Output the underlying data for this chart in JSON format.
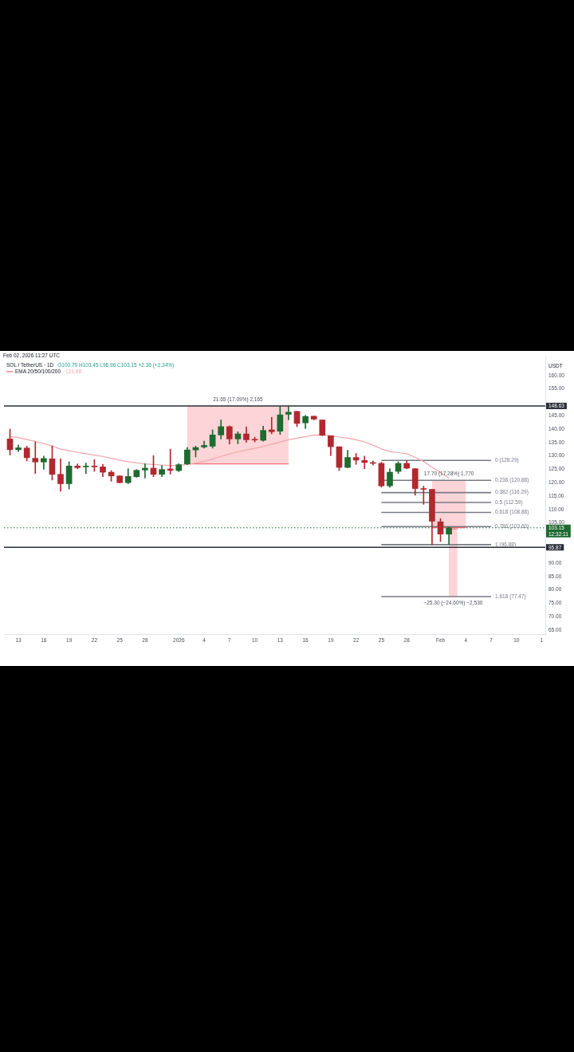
{
  "chart_data": {
    "type": "candlestick",
    "title": "SOL / TetherUS · 1D",
    "subtitle": "O100.79 H103.45 L96.96 C103.15 +2.36 (+2.34%)",
    "ylabel": "USDT",
    "x": [
      "2025-12-12",
      "2025-12-13",
      "2025-12-14",
      "2025-12-15",
      "2025-12-16",
      "2025-12-17",
      "2025-12-18",
      "2025-12-19",
      "2025-12-20",
      "2025-12-21",
      "2025-12-22",
      "2025-12-23",
      "2025-12-24",
      "2025-12-25",
      "2025-12-26",
      "2025-12-27",
      "2025-12-28",
      "2025-12-29",
      "2025-12-30",
      "2025-12-31",
      "2026-01-01",
      "2026-01-02",
      "2026-01-03",
      "2026-01-04",
      "2026-01-05",
      "2026-01-06",
      "2026-01-07",
      "2026-01-08",
      "2026-01-09",
      "2026-01-10",
      "2026-01-11",
      "2026-01-12",
      "2026-01-13",
      "2026-01-14",
      "2026-01-15",
      "2026-01-16",
      "2026-01-17",
      "2026-01-18",
      "2026-01-19",
      "2026-01-20",
      "2026-01-21",
      "2026-01-22",
      "2026-01-23",
      "2026-01-24",
      "2026-01-25",
      "2026-01-26",
      "2026-01-27",
      "2026-01-28",
      "2026-01-29",
      "2026-01-30",
      "2026-01-31",
      "2026-02-01",
      "2026-02-02"
    ],
    "ohlc": [
      [
        136.3,
        140.0,
        130.3,
        132.3
      ],
      [
        132.3,
        134.1,
        131.6,
        133.0
      ],
      [
        132.9,
        133.6,
        128.1,
        129.3
      ],
      [
        129.1,
        135.2,
        123.4,
        127.7
      ],
      [
        127.7,
        129.9,
        125.0,
        129.0
      ],
      [
        128.9,
        133.7,
        121.0,
        123.1
      ],
      [
        123.1,
        128.9,
        116.8,
        119.6
      ],
      [
        119.6,
        127.8,
        117.6,
        126.2
      ],
      [
        126.2,
        127.0,
        125.2,
        125.6
      ],
      [
        125.9,
        127.3,
        123.4,
        126.1
      ],
      [
        126.2,
        128.6,
        124.2,
        125.9
      ],
      [
        125.9,
        126.9,
        122.2,
        123.9
      ],
      [
        123.9,
        124.5,
        120.5,
        122.5
      ],
      [
        122.5,
        122.6,
        119.9,
        120.0
      ],
      [
        120.0,
        125.2,
        119.6,
        122.3
      ],
      [
        122.2,
        124.9,
        122.0,
        124.6
      ],
      [
        124.7,
        127.1,
        121.7,
        125.4
      ],
      [
        125.4,
        130.1,
        122.2,
        123.1
      ],
      [
        123.1,
        126.4,
        122.2,
        124.9
      ],
      [
        125.1,
        132.5,
        123.2,
        124.6
      ],
      [
        124.5,
        127.1,
        124.1,
        126.7
      ],
      [
        127.0,
        133.1,
        126.7,
        132.2
      ],
      [
        132.2,
        133.6,
        129.6,
        133.1
      ],
      [
        133.3,
        135.5,
        132.9,
        133.9
      ],
      [
        133.6,
        139.7,
        132.9,
        137.8
      ],
      [
        137.8,
        143.4,
        136.3,
        140.9
      ],
      [
        140.9,
        141.2,
        134.4,
        136.3
      ],
      [
        136.3,
        139.0,
        134.5,
        138.2
      ],
      [
        138.2,
        140.8,
        135.0,
        136.0
      ],
      [
        136.1,
        137.0,
        135.2,
        135.9
      ],
      [
        135.8,
        141.1,
        135.5,
        139.5
      ],
      [
        139.7,
        144.4,
        138.2,
        139.0
      ],
      [
        139.2,
        148.4,
        138.0,
        145.3
      ],
      [
        145.5,
        148.63,
        143.4,
        146.3
      ],
      [
        146.6,
        146.6,
        140.9,
        142.1
      ],
      [
        142.3,
        145.1,
        140.2,
        144.7
      ],
      [
        144.8,
        144.8,
        143.4,
        143.7
      ],
      [
        143.4,
        143.4,
        137.5,
        137.7
      ],
      [
        137.5,
        137.5,
        130.1,
        133.4
      ],
      [
        133.4,
        133.4,
        124.5,
        125.7
      ],
      [
        125.7,
        132.1,
        125.5,
        129.4
      ],
      [
        129.4,
        130.9,
        126.8,
        128.4
      ],
      [
        128.3,
        129.9,
        125.2,
        127.5
      ],
      [
        127.4,
        128.1,
        126.6,
        127.2
      ],
      [
        127.2,
        127.6,
        118.3,
        118.8
      ],
      [
        118.8,
        125.2,
        118.3,
        123.9
      ],
      [
        124.2,
        127.8,
        123.4,
        127.2
      ],
      [
        127.2,
        128.29,
        125.2,
        125.4
      ],
      [
        125.2,
        125.2,
        115.3,
        117.8
      ],
      [
        117.8,
        118.7,
        111.9,
        117.5
      ],
      [
        117.5,
        117.5,
        96.88,
        105.6
      ],
      [
        105.4,
        106.6,
        98.0,
        100.79
      ],
      [
        100.79,
        103.45,
        96.96,
        103.15
      ]
    ],
    "colors": [
      "#b2282f",
      "#1e6a30",
      "#b2282f",
      "#b2282f",
      "#1e6a30",
      "#b2282f",
      "#b2282f",
      "#1e6a30",
      "#b2282f",
      "#1e6a30",
      "#b2282f",
      "#b2282f",
      "#b2282f",
      "#b2282f",
      "#1e6a30",
      "#1e6a30",
      "#1e6a30",
      "#b2282f",
      "#1e6a30",
      "#b2282f",
      "#1e6a30",
      "#1e6a30",
      "#1e6a30",
      "#1e6a30",
      "#1e6a30",
      "#1e6a30",
      "#b2282f",
      "#1e6a30",
      "#b2282f",
      "#b2282f",
      "#1e6a30",
      "#b2282f",
      "#1e6a30",
      "#1e6a30",
      "#b2282f",
      "#1e6a30",
      "#b2282f",
      "#b2282f",
      "#b2282f",
      "#b2282f",
      "#1e6a30",
      "#b2282f",
      "#b2282f",
      "#b2282f",
      "#b2282f",
      "#1e6a30",
      "#1e6a30",
      "#b2282f",
      "#b2282f",
      "#b2282f",
      "#b2282f",
      "#b2282f",
      "#1e6a30"
    ],
    "series": [
      {
        "type": "line",
        "name": "EMA 20/50/100/200",
        "color": "#f4a6ab",
        "values": [
          137.2,
          136.8,
          136.1,
          135.4,
          134.6,
          133.7,
          132.5,
          131.9,
          131.3,
          130.8,
          130.3,
          129.8,
          129.1,
          128.4,
          127.8,
          127.4,
          127.0,
          126.8,
          126.6,
          126.4,
          126.5,
          126.8,
          127.3,
          128.0,
          128.8,
          129.8,
          130.7,
          131.5,
          132.2,
          132.8,
          133.5,
          134.3,
          135.2,
          136.0,
          136.6,
          137.2,
          137.7,
          137.8,
          137.5,
          137.0,
          136.6,
          136.0,
          135.2,
          134.0,
          132.6,
          131.6,
          131.2,
          130.8,
          129.4,
          127.9,
          125.8,
          123.8,
          121.68
        ]
      },
      {
        "type": "line",
        "name": "0 (128.29)",
        "color": "#787b86",
        "x": [
          "2026-01-25",
          "2026-02-07"
        ],
        "values": [
          128.29,
          128.29
        ]
      },
      {
        "type": "line",
        "name": "0.236 (120.88)",
        "color": "#787b86",
        "x": [
          "2026-01-25",
          "2026-02-07"
        ],
        "values": [
          120.88,
          120.88
        ]
      },
      {
        "type": "line",
        "name": "0.382 (116.29)",
        "color": "#787b86",
        "x": [
          "2026-01-25",
          "2026-02-07"
        ],
        "values": [
          116.29,
          116.29
        ]
      },
      {
        "type": "line",
        "name": "0.5 (112.59)",
        "color": "#787b86",
        "x": [
          "2026-01-25",
          "2026-02-07"
        ],
        "values": [
          112.59,
          112.59
        ]
      },
      {
        "type": "line",
        "name": "0.618 (108.88)",
        "color": "#787b86",
        "x": [
          "2026-01-25",
          "2026-02-07"
        ],
        "values": [
          108.88,
          108.88
        ]
      },
      {
        "type": "line",
        "name": "0.786 (103.60)",
        "color": "#787b86",
        "x": [
          "2026-01-25",
          "2026-02-07"
        ],
        "values": [
          103.6,
          103.6
        ]
      },
      {
        "type": "line",
        "name": "1 (96.88)",
        "color": "#787b86",
        "x": [
          "2026-01-25",
          "2026-02-07"
        ],
        "values": [
          96.88,
          96.88
        ]
      },
      {
        "type": "line",
        "name": "1.618 (77.47)",
        "color": "#787b86",
        "x": [
          "2026-01-25",
          "2026-02-07"
        ],
        "values": [
          77.47,
          77.47
        ]
      },
      {
        "type": "line",
        "color": "#f7525f",
        "x": [
          "2026-01-02",
          "2026-01-14"
        ],
        "values": [
          126.98,
          126.98
        ],
        "lower": [
          126.98,
          126.98
        ],
        "upper": [
          148.63,
          148.63
        ]
      },
      {
        "type": "line",
        "color": "#f7525f",
        "x": [
          "2026-01-31",
          "2026-02-04"
        ],
        "values": [
          103.18,
          103.18
        ],
        "lower": [
          103.18,
          103.18
        ],
        "upper": [
          120.88,
          120.88
        ]
      },
      {
        "type": "line",
        "color": "#f7525f",
        "x": [
          "2026-02-02",
          "2026-02-03"
        ],
        "values": [
          102.77,
          102.77
        ],
        "lower": [
          77.47,
          77.47
        ],
        "upper": [
          102.77,
          102.77
        ]
      }
    ],
    "ref_lines": [
      {
        "axis": "y",
        "value": 148.63,
        "label": "148.63",
        "color": "#2a2e39"
      },
      {
        "axis": "y",
        "value": 95.87,
        "label": "95.87",
        "color": "#2a2e39"
      },
      {
        "axis": "y",
        "value": 103.15,
        "label": "103.15\n12:32:11",
        "color": "#1e6a30",
        "line_style": "dotted"
      }
    ],
    "annotations": [
      "Feb 02, 2026 11:27 UTC",
      "121.68",
      {
        "text": "21.65 (17.09%) 2,165",
        "x": "2026-01-08",
        "y": 148.63
      },
      {
        "text": "17.70 (17.28%) 1,770",
        "x": "2026-02-02",
        "y": 120.88
      },
      {
        "text": "−25.30 (−24.60%) −2,530",
        "x": "2026-02-02T12:00",
        "y": 77.47
      }
    ],
    "xlim": [
      "2025-12-11T07:00",
      "2026-02-13T10:00"
    ],
    "xticks": [
      {
        "value": "2025-12-13",
        "label": "13"
      },
      {
        "value": "2025-12-16",
        "label": "16"
      },
      {
        "value": "2025-12-19",
        "label": "19"
      },
      {
        "value": "2025-12-22",
        "label": "22"
      },
      {
        "value": "2025-12-25",
        "label": "25"
      },
      {
        "value": "2025-12-28",
        "label": "28"
      },
      {
        "value": "2026-01-01",
        "label": "2026"
      },
      {
        "value": "2026-01-04",
        "label": "4"
      },
      {
        "value": "2026-01-07",
        "label": "7"
      },
      {
        "value": "2026-01-10",
        "label": "10"
      },
      {
        "value": "2026-01-13",
        "label": "13"
      },
      {
        "value": "2026-01-16",
        "label": "16"
      },
      {
        "value": "2026-01-19",
        "label": "19"
      },
      {
        "value": "2026-01-22",
        "label": "22"
      },
      {
        "value": "2026-01-25",
        "label": "25"
      },
      {
        "value": "2026-01-28",
        "label": "28"
      },
      {
        "value": "2026-02-01",
        "label": "Feb"
      },
      {
        "value": "2026-02-04",
        "label": "4"
      },
      {
        "value": "2026-02-07",
        "label": "7"
      },
      {
        "value": "2026-02-10",
        "label": "10"
      },
      {
        "value": "2026-02-13",
        "label": "1"
      }
    ],
    "ylim": [
      63.5,
      166.8
    ],
    "yticks": [
      {
        "value": 65,
        "label": "65.00"
      },
      {
        "value": 70,
        "label": "70.00"
      },
      {
        "value": 75,
        "label": "75.00"
      },
      {
        "value": 80,
        "label": "80.00"
      },
      {
        "value": 85,
        "label": "85.00"
      },
      {
        "value": 90,
        "label": "90.00"
      },
      {
        "value": 105,
        "label": "105.00"
      },
      {
        "value": 110,
        "label": "110.00"
      },
      {
        "value": 115,
        "label": "115.00"
      },
      {
        "value": 120,
        "label": "120.00"
      },
      {
        "value": 125,
        "label": "125.00"
      },
      {
        "value": 130,
        "label": "130.00"
      },
      {
        "value": 135,
        "label": "135.00"
      },
      {
        "value": 140,
        "label": "140.00"
      },
      {
        "value": 145,
        "label": "145.00"
      },
      {
        "value": 155,
        "label": "155.00"
      },
      {
        "value": 160,
        "label": "160.00"
      }
    ],
    "legend": "top left"
  }
}
